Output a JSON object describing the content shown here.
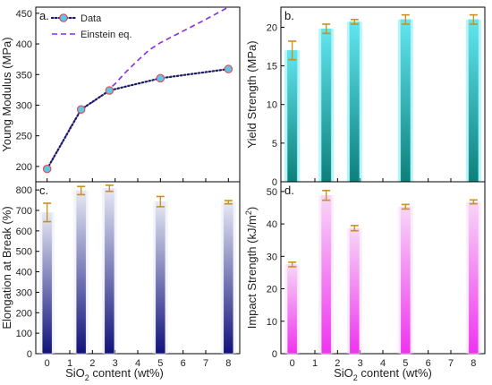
{
  "figure": {
    "shared_xlabel_main": "SiO",
    "shared_xlabel_sub": "2",
    "shared_xlabel_tail": " content (wt%)"
  },
  "chart_data": [
    {
      "panel": "a.",
      "type": "line",
      "ylabel": "Young Modulus (MPa)",
      "xlabel": "",
      "xlim": [
        -0.5,
        8.5
      ],
      "ylim": [
        175,
        460
      ],
      "yticks": [
        200,
        250,
        300,
        350,
        400,
        450
      ],
      "legend_position": "top-left",
      "series": [
        {
          "name": "Data",
          "style": "dotted-markers",
          "color": "#1a1a66",
          "marker_fill": "#5bc8e6",
          "marker_edge": "#e0505a",
          "x": [
            0,
            1.5,
            2.75,
            5,
            8
          ],
          "y": [
            196,
            293,
            324,
            344,
            359
          ],
          "err": [
            4,
            6,
            5,
            4,
            5
          ]
        },
        {
          "name": "Einstein eq.",
          "style": "dashed",
          "color": "#8a2be2",
          "x": [
            0,
            0.5,
            1,
            1.5,
            2,
            2.5,
            3,
            3.5,
            4,
            4.5,
            5,
            6,
            7,
            8
          ],
          "y": [
            196,
            228,
            262,
            293,
            305,
            318,
            335,
            355,
            373,
            390,
            402,
            421,
            440,
            460
          ]
        }
      ]
    },
    {
      "panel": "b.",
      "type": "bar",
      "ylabel": "Yield Strength (MPa)",
      "xlabel": "",
      "xlim": [
        -0.5,
        8.5
      ],
      "ylim": [
        0,
        22.6
      ],
      "yticks": [
        0,
        5,
        10,
        15,
        20
      ],
      "bar_colors": [
        "#0e7f7a",
        "#62e6f0"
      ],
      "x": [
        0,
        1.5,
        2.75,
        5,
        8
      ],
      "values": [
        17.0,
        19.8,
        20.7,
        21.0,
        21.0
      ],
      "err": [
        1.2,
        0.6,
        0.3,
        0.6,
        0.6
      ]
    },
    {
      "panel": "c.",
      "type": "bar",
      "ylabel": "Elongation at Break (%)",
      "xlabel": "",
      "xlim": [
        -0.5,
        8.5
      ],
      "ylim": [
        0,
        840
      ],
      "yticks": [
        0,
        100,
        200,
        300,
        400,
        500,
        600,
        700,
        800
      ],
      "xticks": [
        0,
        1,
        2,
        3,
        4,
        5,
        6,
        7,
        8
      ],
      "bar_colors": [
        "#10127a",
        "#e6e9f4"
      ],
      "x": [
        0,
        1.5,
        2.75,
        5,
        8
      ],
      "values": [
        690,
        797,
        808,
        743,
        740
      ],
      "err": [
        45,
        20,
        15,
        25,
        8
      ]
    },
    {
      "panel": "d.",
      "type": "bar",
      "ylabel_main": "Impact Strength (kJ/m",
      "ylabel_sup": "2",
      "ylabel_end": ")",
      "xlabel": "",
      "xlim": [
        -0.5,
        8.5
      ],
      "ylim": [
        0,
        53
      ],
      "yticks": [
        0,
        10,
        20,
        30,
        40,
        50
      ],
      "xticks": [
        0,
        1,
        2,
        3,
        4,
        5,
        6,
        7,
        8
      ],
      "bar_colors": [
        "#ee33ee",
        "#f7d7f7"
      ],
      "x": [
        0,
        1.5,
        2.75,
        5,
        8
      ],
      "values": [
        27.5,
        48.8,
        38.7,
        45.3,
        46.8
      ],
      "err": [
        0.7,
        1.5,
        0.8,
        0.7,
        0.6
      ]
    }
  ]
}
